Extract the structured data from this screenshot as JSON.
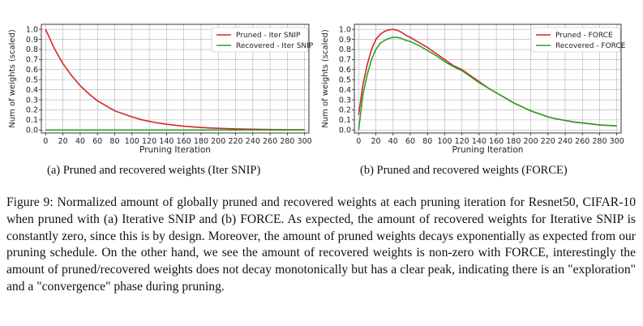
{
  "chart_data": [
    {
      "type": "line",
      "xlabel": "Pruning Iteration",
      "ylabel": "Num of weights (scaled)",
      "xlim": [
        -5,
        305
      ],
      "ylim": [
        -0.03,
        1.05
      ],
      "xticks": [
        0,
        20,
        40,
        60,
        80,
        100,
        120,
        140,
        160,
        180,
        200,
        220,
        240,
        260,
        280,
        300
      ],
      "yticks": [
        0.0,
        0.1,
        0.2,
        0.3,
        0.4,
        0.5,
        0.6,
        0.7,
        0.8,
        0.9,
        1.0
      ],
      "grid": true,
      "legend_position": "top-right",
      "series": [
        {
          "name": "Pruned - Iter SNIP",
          "color": "#d62728",
          "x": [
            0,
            10,
            20,
            30,
            40,
            50,
            60,
            70,
            80,
            90,
            100,
            110,
            120,
            130,
            140,
            150,
            160,
            170,
            180,
            190,
            200,
            210,
            220,
            230,
            240,
            250,
            260,
            270,
            280,
            290,
            300
          ],
          "y": [
            1.0,
            0.81,
            0.66,
            0.54,
            0.44,
            0.36,
            0.29,
            0.24,
            0.19,
            0.16,
            0.13,
            0.105,
            0.085,
            0.07,
            0.057,
            0.047,
            0.038,
            0.031,
            0.025,
            0.02,
            0.017,
            0.014,
            0.011,
            0.009,
            0.008,
            0.006,
            0.005,
            0.004,
            0.003,
            0.003,
            0.002
          ]
        },
        {
          "name": "Recovered - Iter SNIP",
          "color": "#2ca02c",
          "x": [
            0,
            300
          ],
          "y": [
            0.0,
            0.0
          ]
        }
      ]
    },
    {
      "type": "line",
      "xlabel": "Pruning Iteration",
      "ylabel": "Num of weights (scaled)",
      "xlim": [
        -5,
        305
      ],
      "ylim": [
        -0.03,
        1.05
      ],
      "xticks": [
        0,
        20,
        40,
        60,
        80,
        100,
        120,
        140,
        160,
        180,
        200,
        220,
        240,
        260,
        280,
        300
      ],
      "yticks": [
        0.0,
        0.1,
        0.2,
        0.3,
        0.4,
        0.5,
        0.6,
        0.7,
        0.8,
        0.9,
        1.0
      ],
      "grid": true,
      "legend_position": "top-right",
      "series": [
        {
          "name": "Pruned - FORCE",
          "color": "#d62728",
          "x": [
            0,
            5,
            10,
            15,
            20,
            25,
            30,
            35,
            40,
            45,
            50,
            55,
            60,
            70,
            80,
            90,
            100,
            110,
            120,
            130,
            140,
            150,
            160,
            170,
            180,
            190,
            200,
            210,
            220,
            230,
            240,
            250,
            260,
            270,
            280,
            290,
            300
          ],
          "y": [
            0.15,
            0.45,
            0.65,
            0.8,
            0.9,
            0.95,
            0.98,
            0.995,
            1.0,
            0.99,
            0.97,
            0.94,
            0.92,
            0.87,
            0.82,
            0.76,
            0.7,
            0.64,
            0.6,
            0.54,
            0.48,
            0.42,
            0.37,
            0.32,
            0.27,
            0.23,
            0.19,
            0.16,
            0.13,
            0.11,
            0.095,
            0.08,
            0.07,
            0.06,
            0.05,
            0.045,
            0.04
          ]
        },
        {
          "name": "Recovered - FORCE",
          "color": "#2ca02c",
          "x": [
            0,
            5,
            10,
            15,
            20,
            25,
            30,
            35,
            40,
            45,
            50,
            55,
            60,
            70,
            80,
            90,
            100,
            110,
            120,
            130,
            140,
            150,
            160,
            170,
            180,
            190,
            200,
            210,
            220,
            230,
            240,
            250,
            260,
            270,
            280,
            290,
            300
          ],
          "y": [
            0.0,
            0.35,
            0.55,
            0.7,
            0.8,
            0.86,
            0.89,
            0.91,
            0.92,
            0.92,
            0.91,
            0.89,
            0.88,
            0.84,
            0.79,
            0.74,
            0.68,
            0.63,
            0.59,
            0.53,
            0.47,
            0.42,
            0.37,
            0.32,
            0.27,
            0.23,
            0.19,
            0.16,
            0.13,
            0.11,
            0.095,
            0.08,
            0.07,
            0.06,
            0.05,
            0.045,
            0.04
          ]
        }
      ]
    }
  ],
  "captions": {
    "a": "(a) Pruned and recovered weights (Iter SNIP)",
    "b": "(b) Pruned and recovered weights (FORCE)"
  },
  "figure_caption": "Figure 9: Normalized amount of globally pruned and recovered weights at each pruning iteration for Resnet50, CIFAR-10 when pruned with (a) Iterative SNIP and (b) FORCE. As expected, the amount of recovered weights for Iterative SNIP is constantly zero, since this is by design. Moreover, the amount of pruned weights decays exponentially as expected from our pruning schedule. On the other hand, we see the amount of recovered weights is non-zero with FORCE, interestingly the amount of pruned/recovered weights does not decay monotonically but has a clear peak, indicating there is an \"exploration\" and a \"convergence\" phase during pruning."
}
